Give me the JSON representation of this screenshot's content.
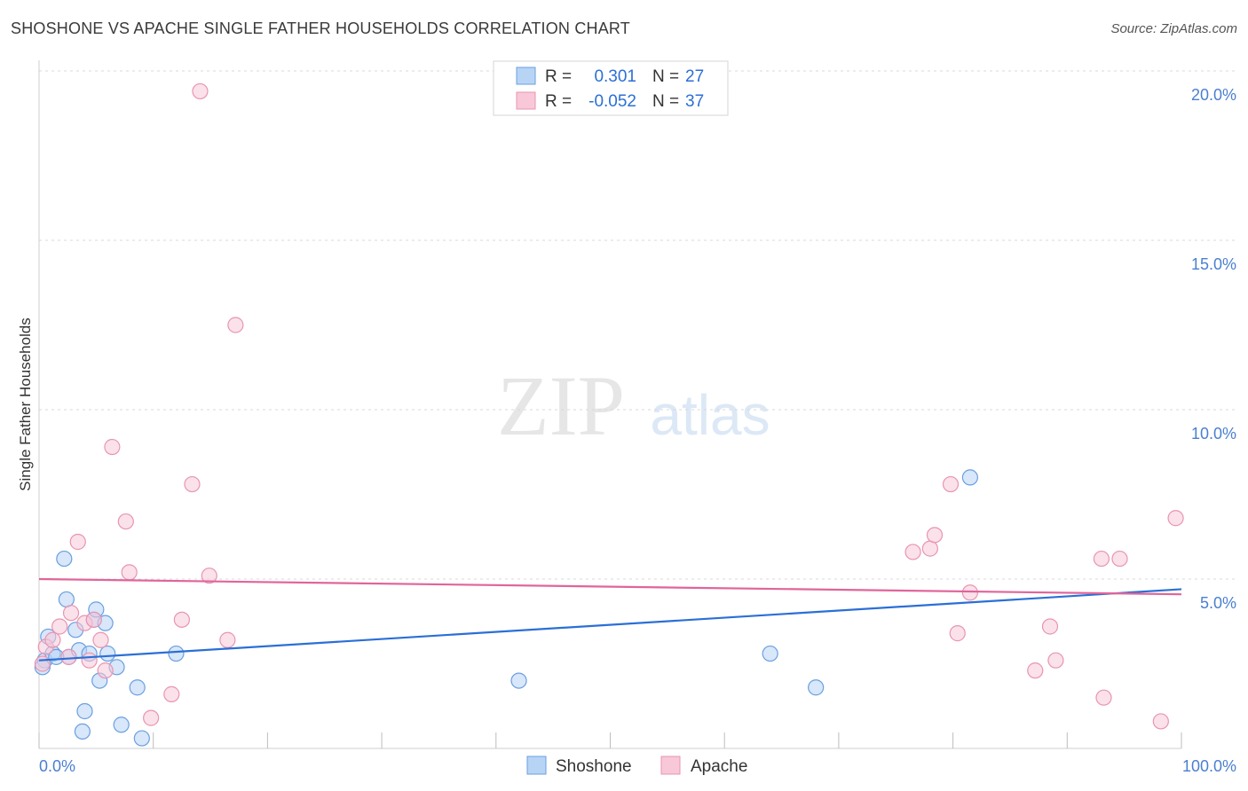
{
  "title": "SHOSHONE VS APACHE SINGLE FATHER HOUSEHOLDS CORRELATION CHART",
  "source": "Source: ZipAtlas.com",
  "watermark": {
    "zip": "ZIP",
    "atlas": "atlas"
  },
  "colors": {
    "shoshone_fill": "#b8d4f5",
    "shoshone_stroke": "#6a9fe0",
    "shoshone_line": "#2b6fd6",
    "apache_fill": "#f8c8d8",
    "apache_stroke": "#e895b0",
    "apache_line": "#e0659a",
    "tick_label": "#4a7fd0",
    "grid": "#d8d8d8"
  },
  "legend_top": {
    "rows": [
      {
        "series": "Shoshone",
        "r_label": "R =",
        "r_value": "0.301",
        "n_label": "N =",
        "n_value": "27"
      },
      {
        "series": "Apache",
        "r_label": "R =",
        "r_value": "-0.052",
        "n_label": "N =",
        "n_value": "37"
      }
    ]
  },
  "legend_bottom": [
    "Shoshone",
    "Apache"
  ],
  "chart_data": {
    "type": "scatter",
    "title": "SHOSHONE VS APACHE SINGLE FATHER HOUSEHOLDS CORRELATION CHART",
    "xlabel": "",
    "ylabel": "Single Father Households",
    "xlim": [
      0,
      100
    ],
    "ylim": [
      0,
      20
    ],
    "x_tick_labels": [
      "0.0%",
      "100.0%"
    ],
    "y_ticks": [
      5,
      10,
      15,
      20
    ],
    "y_tick_labels": [
      "5.0%",
      "10.0%",
      "15.0%",
      "20.0%"
    ],
    "grid": true,
    "series": [
      {
        "name": "Shoshone",
        "r": 0.301,
        "n": 27,
        "trend": {
          "x": [
            0,
            100
          ],
          "y": [
            2.6,
            4.7
          ]
        },
        "points": [
          {
            "x": 0.5,
            "y": 2.6
          },
          {
            "x": 0.8,
            "y": 3.3
          },
          {
            "x": 1.2,
            "y": 2.8
          },
          {
            "x": 2.2,
            "y": 5.6
          },
          {
            "x": 2.4,
            "y": 4.4
          },
          {
            "x": 2.6,
            "y": 2.7
          },
          {
            "x": 3.2,
            "y": 3.5
          },
          {
            "x": 3.5,
            "y": 2.9
          },
          {
            "x": 3.8,
            "y": 0.5
          },
          {
            "x": 4.0,
            "y": 1.1
          },
          {
            "x": 4.4,
            "y": 2.8
          },
          {
            "x": 4.8,
            "y": 3.8
          },
          {
            "x": 5.0,
            "y": 4.1
          },
          {
            "x": 5.3,
            "y": 2.0
          },
          {
            "x": 5.8,
            "y": 3.7
          },
          {
            "x": 6.0,
            "y": 2.8
          },
          {
            "x": 6.8,
            "y": 2.4
          },
          {
            "x": 7.2,
            "y": 0.7
          },
          {
            "x": 8.6,
            "y": 1.8
          },
          {
            "x": 9.0,
            "y": 0.3
          },
          {
            "x": 12.0,
            "y": 2.8
          },
          {
            "x": 42.0,
            "y": 2.0
          },
          {
            "x": 64.0,
            "y": 2.8
          },
          {
            "x": 68.0,
            "y": 1.8
          },
          {
            "x": 81.5,
            "y": 8.0
          },
          {
            "x": 0.3,
            "y": 2.4
          },
          {
            "x": 1.5,
            "y": 2.7
          }
        ]
      },
      {
        "name": "Apache",
        "r": -0.052,
        "n": 37,
        "trend": {
          "x": [
            0,
            100
          ],
          "y": [
            5.0,
            4.55
          ]
        },
        "points": [
          {
            "x": 0.3,
            "y": 2.5
          },
          {
            "x": 0.6,
            "y": 3.0
          },
          {
            "x": 1.2,
            "y": 3.2
          },
          {
            "x": 1.8,
            "y": 3.6
          },
          {
            "x": 2.6,
            "y": 2.7
          },
          {
            "x": 2.8,
            "y": 4.0
          },
          {
            "x": 3.4,
            "y": 6.1
          },
          {
            "x": 4.0,
            "y": 3.7
          },
          {
            "x": 4.4,
            "y": 2.6
          },
          {
            "x": 4.8,
            "y": 3.8
          },
          {
            "x": 5.4,
            "y": 3.2
          },
          {
            "x": 5.8,
            "y": 2.3
          },
          {
            "x": 6.4,
            "y": 8.9
          },
          {
            "x": 7.6,
            "y": 6.7
          },
          {
            "x": 7.9,
            "y": 5.2
          },
          {
            "x": 9.8,
            "y": 0.9
          },
          {
            "x": 11.6,
            "y": 1.6
          },
          {
            "x": 12.5,
            "y": 3.8
          },
          {
            "x": 13.4,
            "y": 7.8
          },
          {
            "x": 14.1,
            "y": 19.4
          },
          {
            "x": 14.9,
            "y": 5.1
          },
          {
            "x": 16.5,
            "y": 3.2
          },
          {
            "x": 17.2,
            "y": 12.5
          },
          {
            "x": 76.5,
            "y": 5.8
          },
          {
            "x": 78.0,
            "y": 5.9
          },
          {
            "x": 78.4,
            "y": 6.3
          },
          {
            "x": 79.8,
            "y": 7.8
          },
          {
            "x": 80.4,
            "y": 3.4
          },
          {
            "x": 81.5,
            "y": 4.6
          },
          {
            "x": 87.2,
            "y": 2.3
          },
          {
            "x": 88.5,
            "y": 3.6
          },
          {
            "x": 89.0,
            "y": 2.6
          },
          {
            "x": 93.0,
            "y": 5.6
          },
          {
            "x": 93.2,
            "y": 1.5
          },
          {
            "x": 94.6,
            "y": 5.6
          },
          {
            "x": 98.2,
            "y": 0.8
          },
          {
            "x": 99.5,
            "y": 6.8
          }
        ]
      }
    ]
  }
}
